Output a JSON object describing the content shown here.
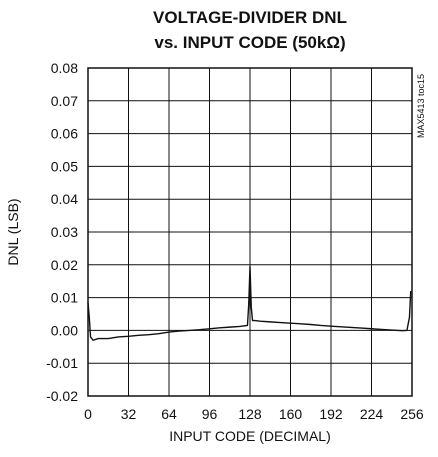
{
  "chart_data": {
    "type": "line",
    "title_line1": "VOLTAGE-DIVIDER DNL",
    "title_line2": "vs. INPUT CODE (50kΩ)",
    "xlabel": "INPUT CODE (DECIMAL)",
    "ylabel": "DNL (LSB)",
    "side_note": "MAX5413 toc15",
    "xlim": [
      0,
      256
    ],
    "ylim": [
      -0.02,
      0.08
    ],
    "x_ticks": [
      0,
      32,
      64,
      96,
      128,
      160,
      192,
      224,
      256
    ],
    "y_ticks": [
      -0.02,
      -0.01,
      0.0,
      0.01,
      0.02,
      0.03,
      0.04,
      0.05,
      0.06,
      0.07,
      0.08
    ],
    "y_tick_labels": [
      "-0.02",
      "-0.01",
      "0.00",
      "0.01",
      "0.02",
      "0.03",
      "0.04",
      "0.05",
      "0.06",
      "0.07",
      "0.08"
    ],
    "grid": true,
    "series": [
      {
        "x": [
          0,
          1,
          2,
          4,
          8,
          16,
          24,
          32,
          40,
          48,
          56,
          64,
          72,
          80,
          88,
          96,
          104,
          112,
          120,
          126,
          127,
          128,
          129,
          130,
          132,
          136,
          144,
          152,
          160,
          168,
          176,
          184,
          192,
          200,
          208,
          216,
          224,
          232,
          240,
          248,
          252,
          254,
          255
        ],
        "y": [
          0.0085,
          0.004,
          -0.002,
          -0.003,
          -0.0025,
          -0.0025,
          -0.002,
          -0.0018,
          -0.0015,
          -0.0013,
          -0.001,
          -0.0005,
          -0.0002,
          0.0,
          0.0002,
          0.0005,
          0.0008,
          0.001,
          0.0012,
          0.0015,
          0.008,
          0.0195,
          0.007,
          0.003,
          0.003,
          0.0028,
          0.0026,
          0.0024,
          0.0022,
          0.002,
          0.0018,
          0.0015,
          0.0013,
          0.0011,
          0.0009,
          0.0007,
          0.0005,
          0.0003,
          0.0001,
          -0.0001,
          0.0,
          0.004,
          0.012
        ]
      }
    ]
  }
}
